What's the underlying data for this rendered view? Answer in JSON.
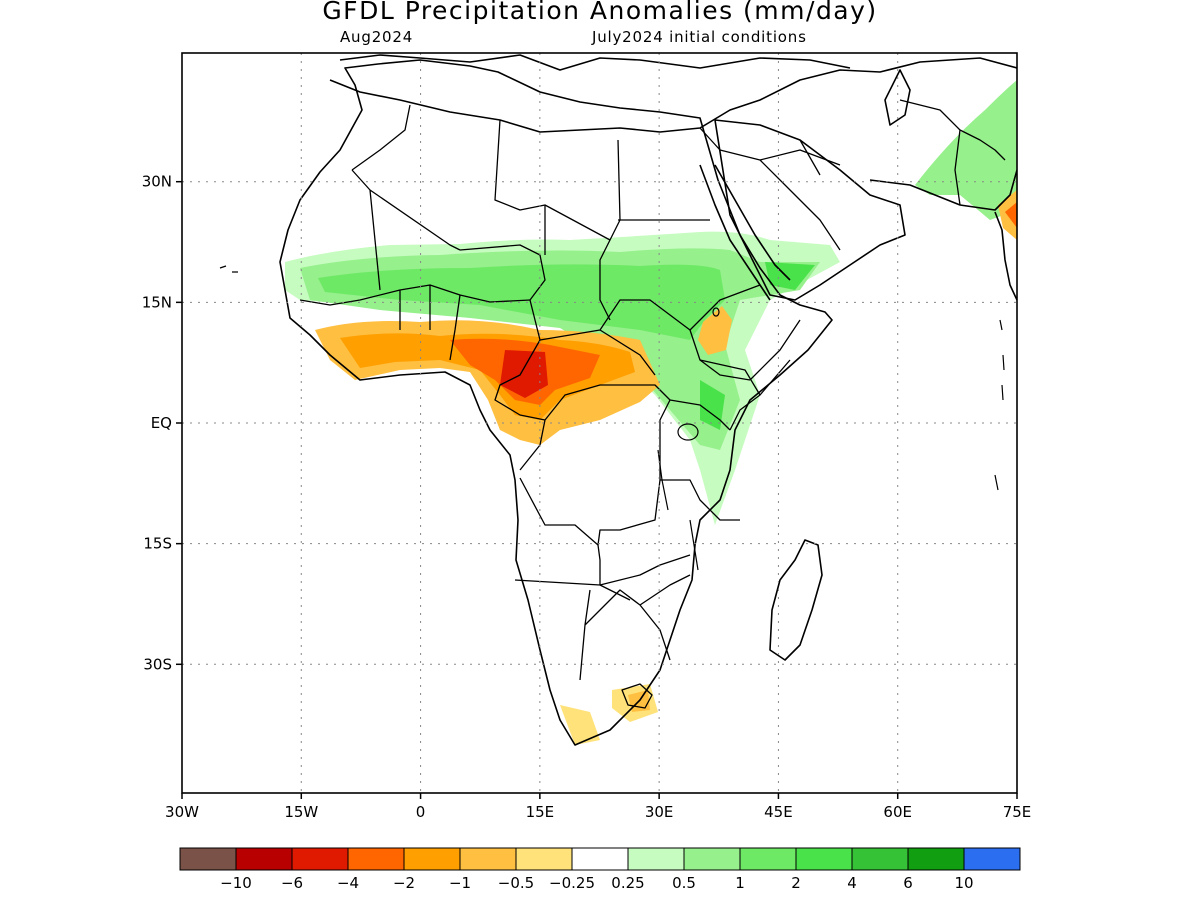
{
  "title": "GFDL Precipitation Anomalies (mm/day)",
  "subtitle_left": "Aug2024",
  "subtitle_right": "July2024 initial conditions",
  "map": {
    "lon_range": [
      -30,
      75
    ],
    "lat_range": [
      -46,
      46
    ],
    "lon_ticks": [
      {
        "v": -30,
        "label": "30W"
      },
      {
        "v": -15,
        "label": "15W"
      },
      {
        "v": 0,
        "label": "0"
      },
      {
        "v": 15,
        "label": "15E"
      },
      {
        "v": 30,
        "label": "30E"
      },
      {
        "v": 45,
        "label": "45E"
      },
      {
        "v": 60,
        "label": "60E"
      },
      {
        "v": 75,
        "label": "75E"
      }
    ],
    "lat_ticks": [
      {
        "v": 30,
        "label": "30N"
      },
      {
        "v": 15,
        "label": "15N"
      },
      {
        "v": 0,
        "label": "EQ"
      },
      {
        "v": -15,
        "label": "15S"
      },
      {
        "v": -30,
        "label": "30S"
      }
    ],
    "grid": "dotted"
  },
  "legend": {
    "colors": [
      "#7a5248",
      "#b80000",
      "#df1a00",
      "#ff6600",
      "#ff9f00",
      "#ffbf40",
      "#ffe27a",
      "#ffffff",
      "#c6fcc0",
      "#96f08c",
      "#6ee966",
      "#4ae24a",
      "#36c236",
      "#119e11",
      "#2b6ff0"
    ],
    "labels": [
      "−10",
      "−6",
      "−4",
      "−2",
      "−1",
      "−0.5",
      "−0.25",
      "0.25",
      "0.5",
      "1",
      "2",
      "4",
      "6",
      "10"
    ]
  }
}
